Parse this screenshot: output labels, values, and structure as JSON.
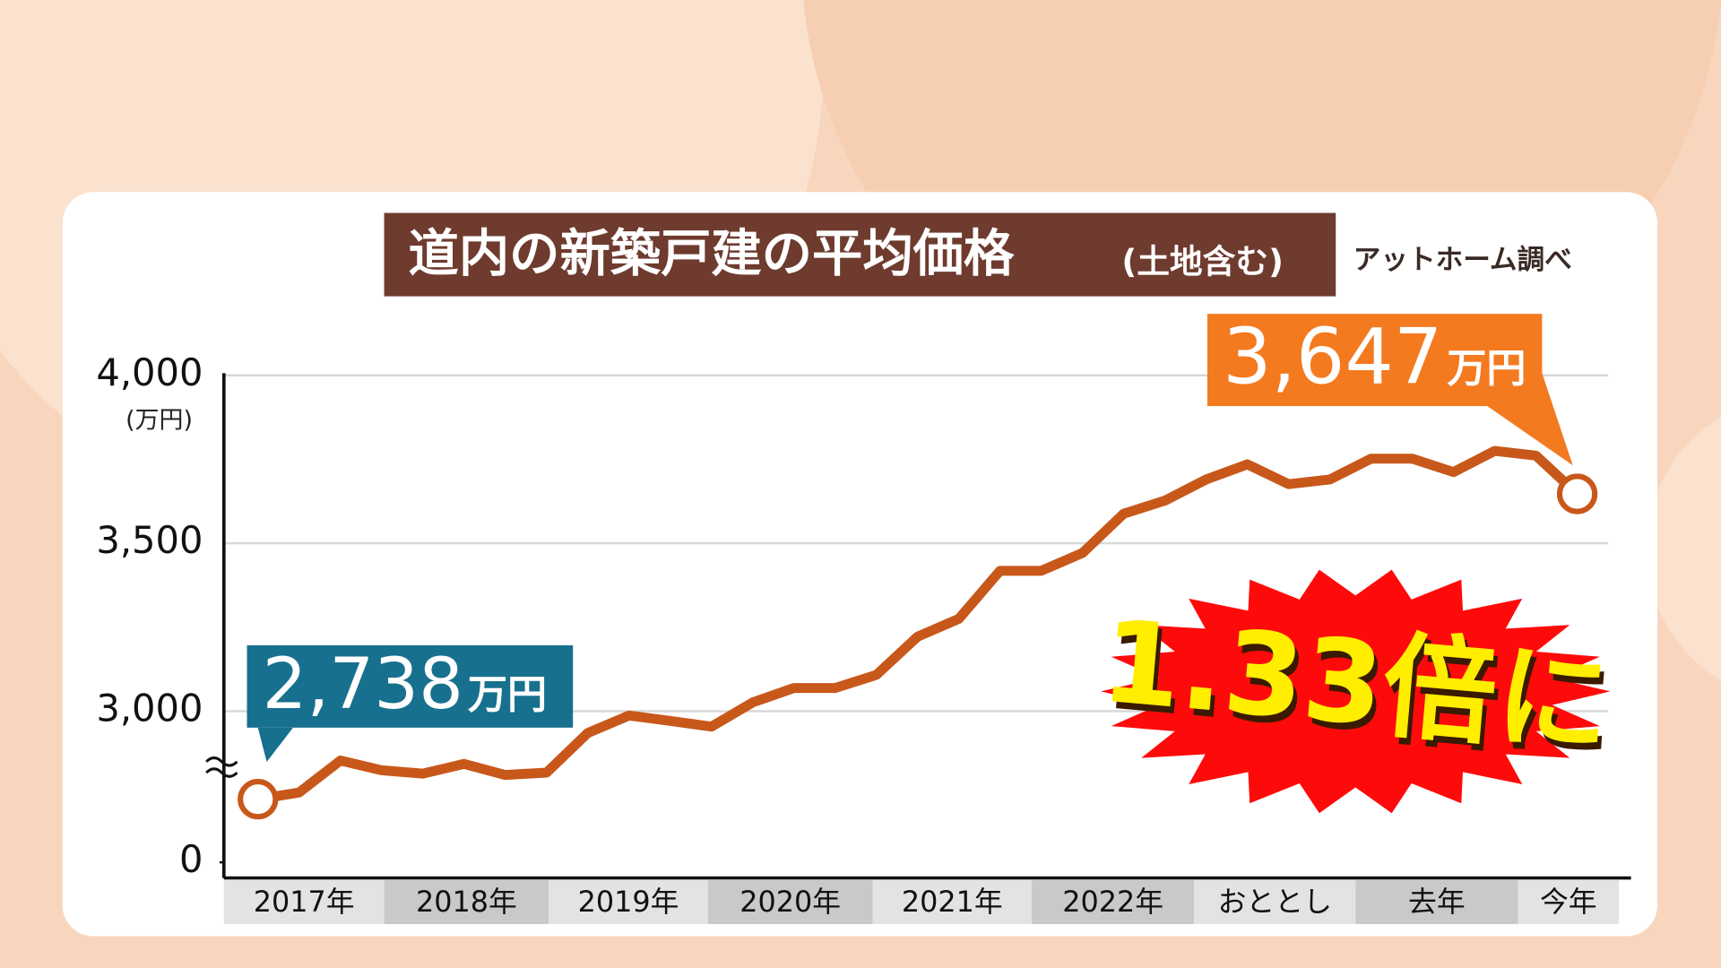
{
  "chart_data": {
    "type": "line",
    "title": "道内の新築戸建の平均価格",
    "title_note": "(土地含む)",
    "source": "アットホーム調べ",
    "y_unit": "(万円)",
    "annotation": "1.33倍に",
    "bands": [
      "2017年",
      "2018年",
      "2019年",
      "2020年",
      "2021年",
      "2022年",
      "おととし",
      "去年",
      "今年"
    ],
    "series": [
      {
        "name": null,
        "color": "#c8581a",
        "values": [
          2738,
          2758,
          2853,
          2824,
          2814,
          2843,
          2810,
          2817,
          2935,
          2987,
          2971,
          2954,
          3026,
          3069,
          3069,
          3108,
          3222,
          3275,
          3418,
          3418,
          3471,
          3588,
          3627,
          3690,
          3735,
          3676,
          3690,
          3752,
          3752,
          3712,
          3775,
          3761,
          3647
        ],
        "value_labels": [
          "2,738",
          null,
          null,
          null,
          null,
          null,
          null,
          null,
          null,
          null,
          null,
          null,
          null,
          null,
          null,
          null,
          null,
          null,
          null,
          null,
          null,
          null,
          null,
          null,
          null,
          null,
          null,
          null,
          null,
          null,
          null,
          null,
          "3,647"
        ]
      }
    ],
    "value_label_unit": "万円",
    "ylim": [
      2550,
      4000
    ],
    "yticks": [
      {
        "value": 0,
        "label": "0"
      },
      {
        "value": 3000,
        "label": "3,000"
      },
      {
        "value": 3500,
        "label": "3,500"
      },
      {
        "value": 4000,
        "label": "4,000"
      }
    ],
    "axis_break": true,
    "grid": true
  }
}
